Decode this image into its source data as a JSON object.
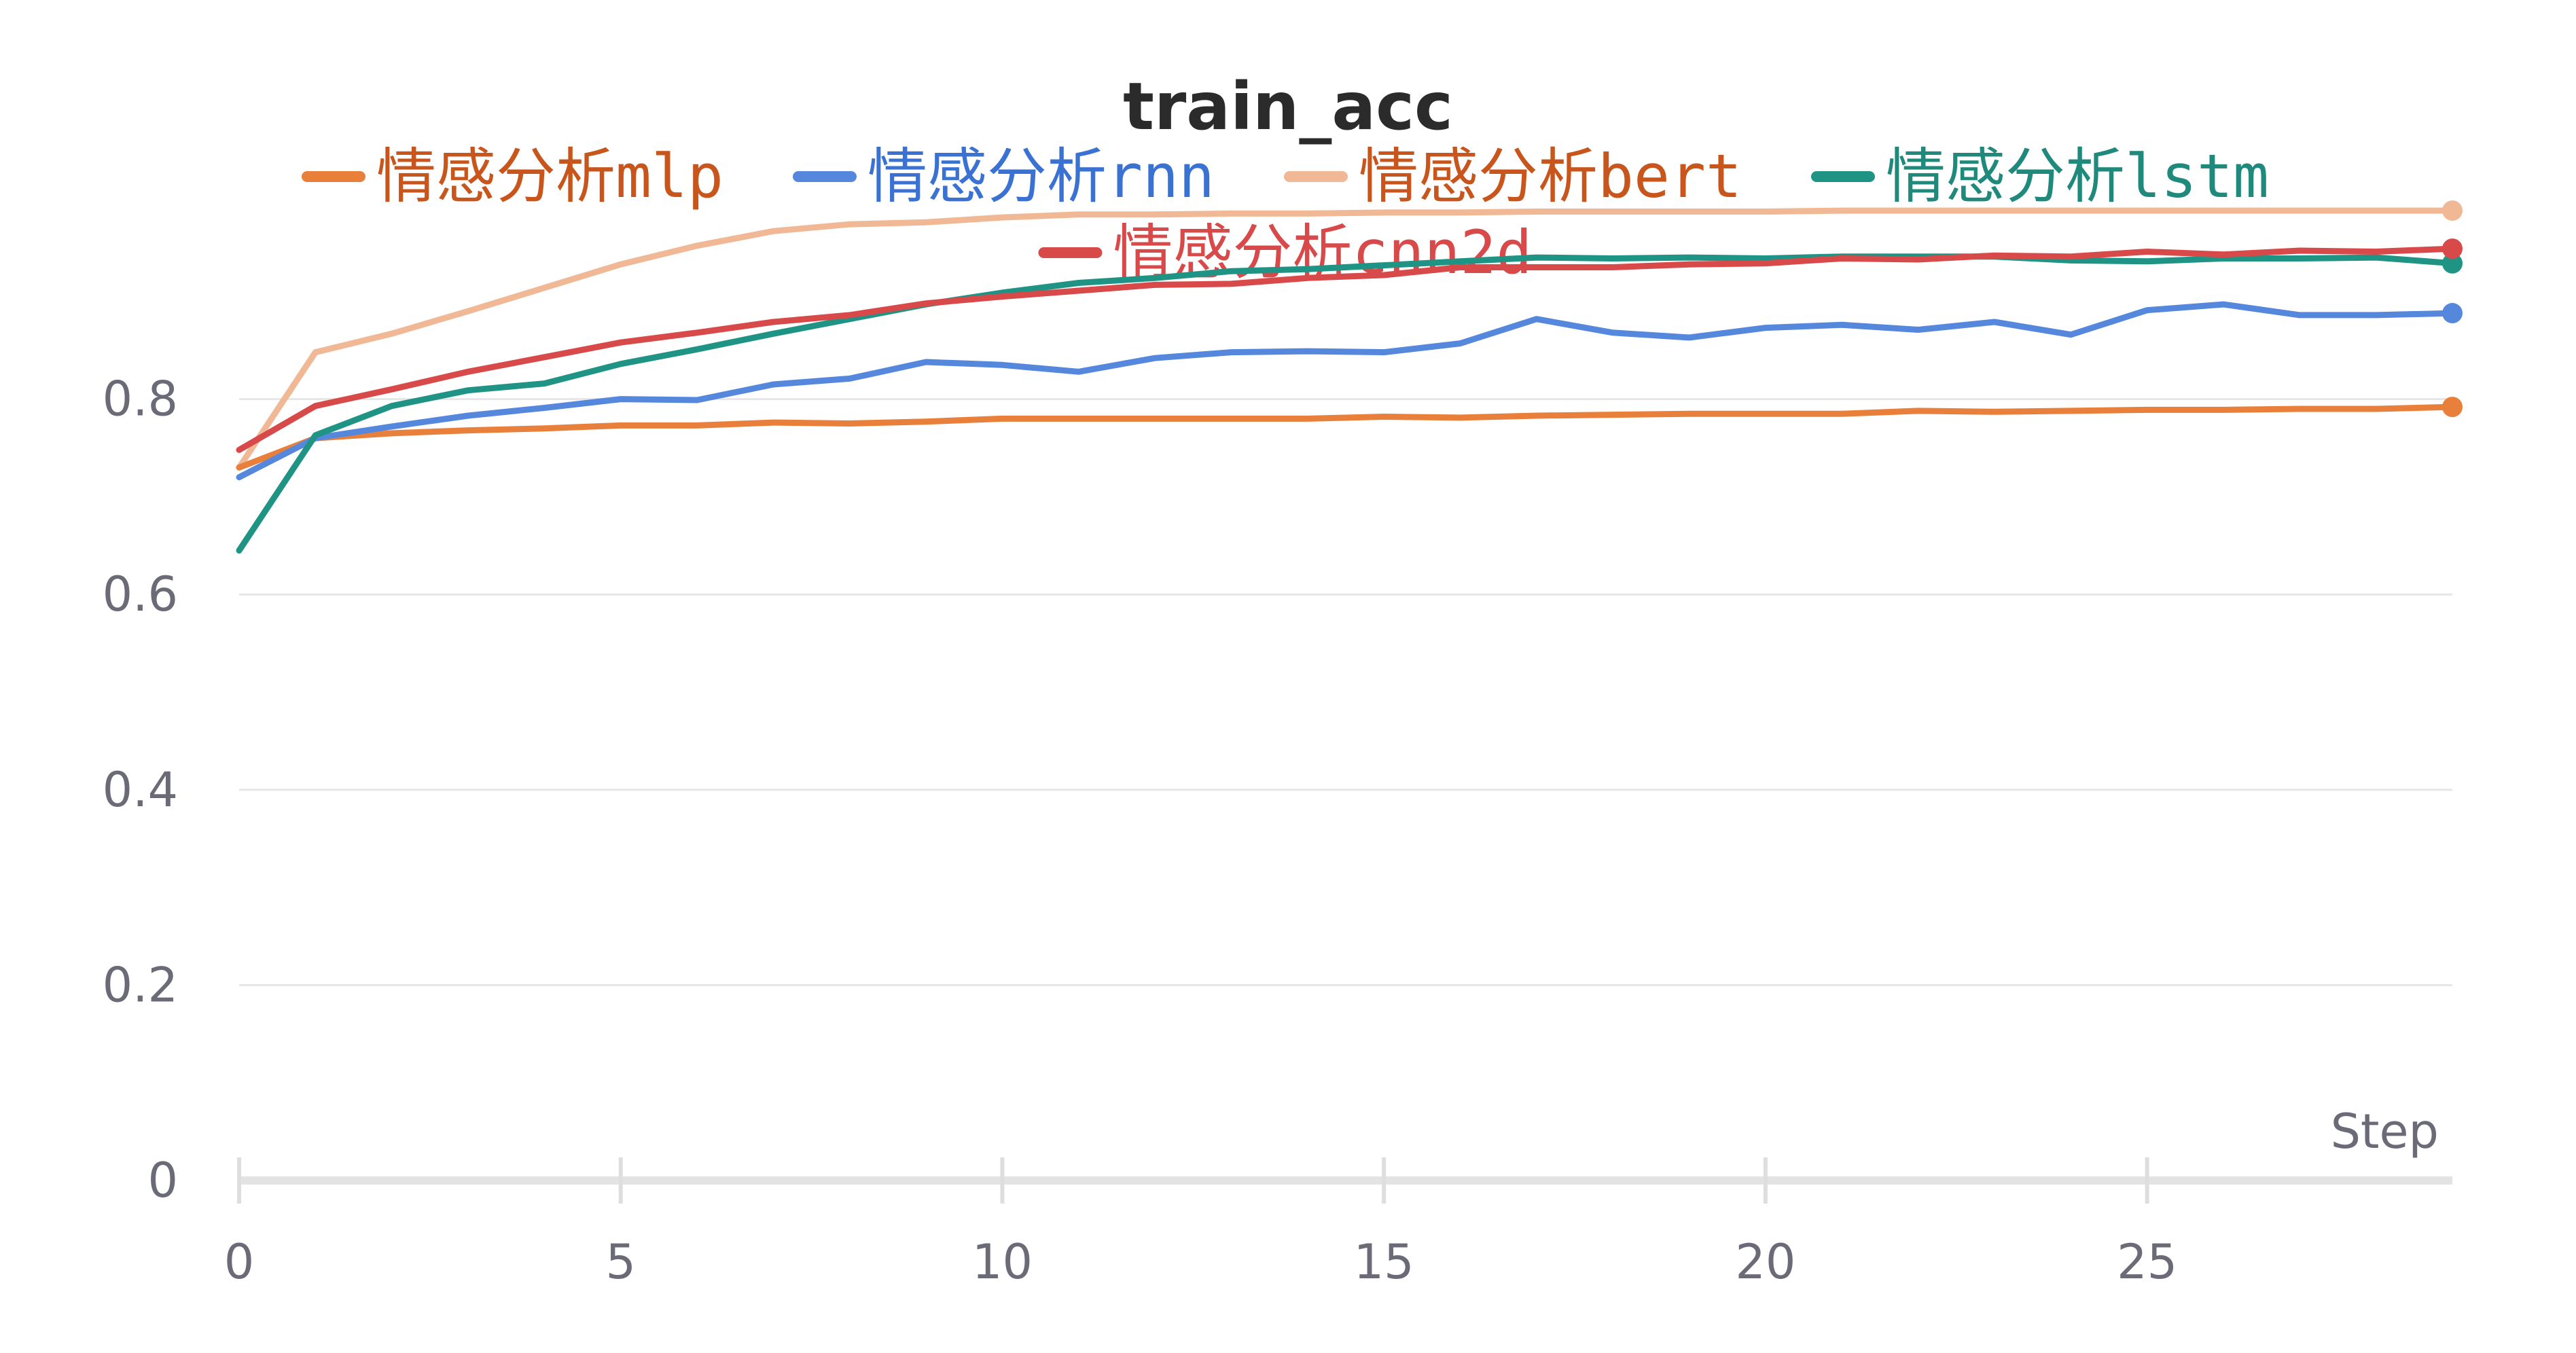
{
  "chart_data": {
    "type": "line",
    "title": "train_acc",
    "xlabel": "Step",
    "ylabel": "",
    "xlim": [
      0,
      29
    ],
    "ylim": [
      0,
      1
    ],
    "x_ticks": [
      0,
      5,
      10,
      15,
      20,
      25
    ],
    "y_ticks": [
      0,
      0.2,
      0.4,
      0.6,
      0.8
    ],
    "y_tick_labels": [
      "0",
      "0.2",
      "0.4",
      "0.6",
      "0.8"
    ],
    "grid": true,
    "legend_position": "top",
    "x": [
      0,
      1,
      2,
      3,
      4,
      5,
      6,
      7,
      8,
      9,
      10,
      11,
      12,
      13,
      14,
      15,
      16,
      17,
      18,
      19,
      20,
      21,
      22,
      23,
      24,
      25,
      26,
      27,
      28,
      29
    ],
    "series": [
      {
        "name": "情感分析mlp",
        "color": "#e8803c",
        "text_color": "#c8561c",
        "values": [
          0.73,
          0.76,
          0.765,
          0.768,
          0.77,
          0.773,
          0.773,
          0.776,
          0.775,
          0.777,
          0.78,
          0.78,
          0.78,
          0.78,
          0.78,
          0.782,
          0.781,
          0.783,
          0.784,
          0.785,
          0.785,
          0.785,
          0.788,
          0.787,
          0.788,
          0.789,
          0.789,
          0.79,
          0.79,
          0.792
        ]
      },
      {
        "name": "情感分析rnn",
        "color": "#5588dd",
        "text_color": "#3a72d4",
        "values": [
          0.72,
          0.76,
          0.772,
          0.783,
          0.791,
          0.8,
          0.799,
          0.815,
          0.821,
          0.838,
          0.835,
          0.828,
          0.842,
          0.848,
          0.849,
          0.848,
          0.857,
          0.882,
          0.868,
          0.863,
          0.873,
          0.876,
          0.871,
          0.879,
          0.866,
          0.891,
          0.897,
          0.886,
          0.886,
          0.888
        ]
      },
      {
        "name": "情感分析bert",
        "color": "#f1b896",
        "text_color": "#c8561c",
        "values": [
          0.73,
          0.848,
          0.867,
          0.89,
          0.914,
          0.938,
          0.957,
          0.972,
          0.979,
          0.981,
          0.986,
          0.989,
          0.989,
          0.99,
          0.99,
          0.991,
          0.991,
          0.992,
          0.992,
          0.992,
          0.992,
          0.993,
          0.993,
          0.993,
          0.993,
          0.993,
          0.993,
          0.993,
          0.993,
          0.993
        ]
      },
      {
        "name": "情感分析lstm",
        "color": "#1f9485",
        "text_color": "#1f8a7c",
        "values": [
          0.645,
          0.763,
          0.793,
          0.809,
          0.816,
          0.836,
          0.851,
          0.867,
          0.882,
          0.897,
          0.909,
          0.919,
          0.924,
          0.931,
          0.933,
          0.937,
          0.941,
          0.945,
          0.944,
          0.945,
          0.944,
          0.946,
          0.946,
          0.946,
          0.942,
          0.941,
          0.944,
          0.944,
          0.945,
          0.939
        ]
      },
      {
        "name": "情感分析cnn2d",
        "color": "#d84a4a",
        "text_color": "#d84a4a",
        "values": [
          0.748,
          0.793,
          0.81,
          0.828,
          0.843,
          0.858,
          0.868,
          0.879,
          0.886,
          0.898,
          0.905,
          0.911,
          0.917,
          0.918,
          0.924,
          0.927,
          0.935,
          0.935,
          0.935,
          0.938,
          0.939,
          0.944,
          0.943,
          0.947,
          0.946,
          0.951,
          0.948,
          0.952,
          0.951,
          0.954
        ]
      }
    ]
  }
}
